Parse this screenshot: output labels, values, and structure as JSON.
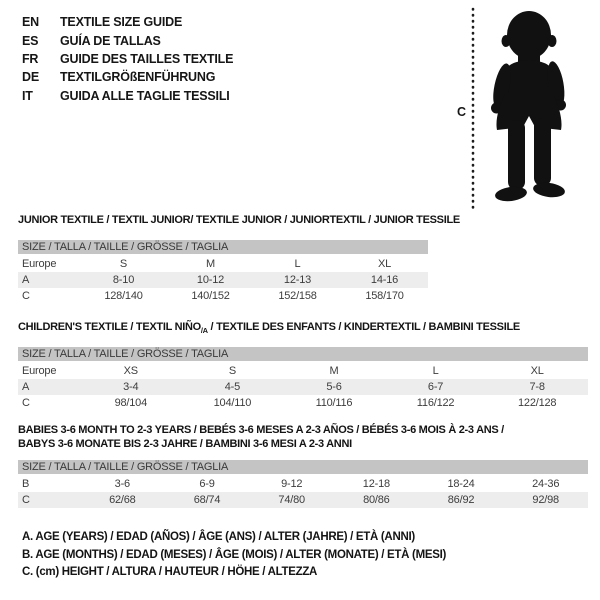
{
  "header": {
    "languages": [
      {
        "code": "EN",
        "label": "TEXTILE SIZE GUIDE"
      },
      {
        "code": "ES",
        "label": "GUÍA DE TALLAS"
      },
      {
        "code": "FR",
        "label": "GUIDE DES TAILLES TEXTILE"
      },
      {
        "code": "DE",
        "label": "TEXTILGRÖßENFÜHRUNG"
      },
      {
        "code": "IT",
        "label": "GUIDA ALLE TAGLIE TESSILI"
      }
    ],
    "figure": {
      "measure_label": "C",
      "figure_name": "toddler-silhouette"
    }
  },
  "colors": {
    "header_bar_bg": "#c4c4c4",
    "stripe_bg": "#ededed",
    "text_dark": "#141414",
    "table_text": "#3d3d3d",
    "silhouette": "#111111"
  },
  "tables": [
    {
      "id": "junior",
      "title_lines": [
        [
          {
            "t": "JUNIOR TEXTILE / TEXTIL JUNIOR/ TEXTILE JUNIOR / JUNIORTEXTIL / JUNIOR TESSILE",
            "sub": false
          }
        ]
      ],
      "size_header": "SIZE / TALLA / TAILLE / GRÖSSE / TAGLIA",
      "rows": [
        {
          "label": "Europe",
          "values": [
            "S",
            "M",
            "L",
            "XL"
          ],
          "striped": false
        },
        {
          "label": "A",
          "values": [
            "8-10",
            "10-12",
            "12-13",
            "14-16"
          ],
          "striped": true
        },
        {
          "label": "C",
          "values": [
            "128/140",
            "140/152",
            "152/158",
            "158/170"
          ],
          "striped": false
        }
      ]
    },
    {
      "id": "children",
      "title_lines": [
        [
          {
            "t": "CHILDREN'S TEXTILE / TEXTIL NIÑO",
            "sub": false
          },
          {
            "t": "/A",
            "sub": true
          },
          {
            "t": " / TEXTILE DES ENFANTS / KINDERTEXTIL / BAMBINI TESSILE",
            "sub": false
          }
        ]
      ],
      "size_header": "SIZE / TALLA / TAILLE / GRÖSSE / TAGLIA",
      "rows": [
        {
          "label": "Europe",
          "values": [
            "XS",
            "S",
            "M",
            "L",
            "XL"
          ],
          "striped": false
        },
        {
          "label": "A",
          "values": [
            "3-4",
            "4-5",
            "5-6",
            "6-7",
            "7-8"
          ],
          "striped": true
        },
        {
          "label": "C",
          "values": [
            "98/104",
            "104/110",
            "110/116",
            "116/122",
            "122/128"
          ],
          "striped": false
        }
      ]
    },
    {
      "id": "babies",
      "title_lines": [
        [
          {
            "t": "BABIES 3-6 MONTH TO 2-3 YEARS / BEBÉS 3-6 MESES A 2-3 AÑOS / BÉBÉS 3-6 MOIS À 2-3 ANS /",
            "sub": false
          }
        ],
        [
          {
            "t": "BABYS 3-6 MONATE BIS 2-3 JAHRE / BAMBINI 3-6 MESI A 2-3 ANNI",
            "sub": false
          }
        ]
      ],
      "size_header": "SIZE / TALLA / TAILLE / GRÖSSE / TAGLIA",
      "rows": [
        {
          "label": "B",
          "values": [
            "3-6",
            "6-9",
            "9-12",
            "12-18",
            "18-24",
            "24-36"
          ],
          "striped": false
        },
        {
          "label": "C",
          "values": [
            "62/68",
            "68/74",
            "74/80",
            "80/86",
            "86/92",
            "92/98"
          ],
          "striped": true
        }
      ]
    }
  ],
  "legend": [
    "A. AGE (YEARS) / EDAD (AÑOS) / ÂGE (ANS) / ALTER (JAHRE) / ETÀ (ANNI)",
    "B. AGE (MONTHS) / EDAD (MESES) / ÂGE (MOIS) / ALTER (MONATE) / ETÀ (MESI)",
    "C. (cm) HEIGHT / ALTURA / HAUTEUR / HÖHE / ALTEZZA"
  ]
}
